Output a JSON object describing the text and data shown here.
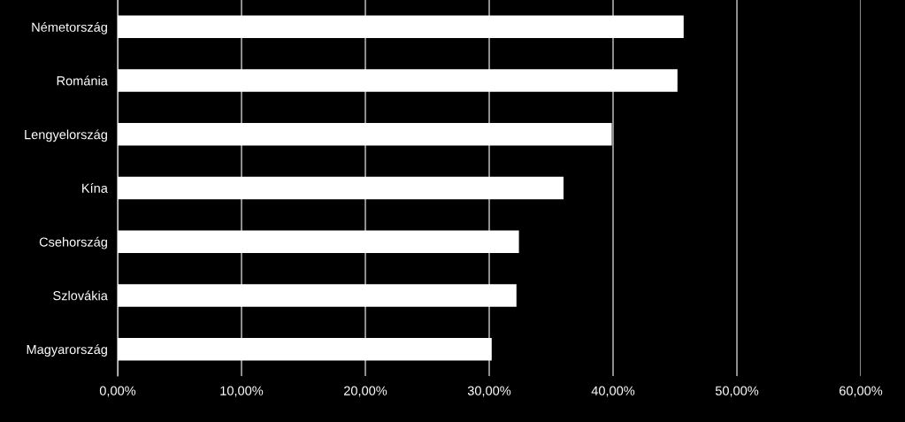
{
  "chart_data": {
    "type": "bar",
    "orientation": "horizontal",
    "categories": [
      "Németország",
      "Románia",
      "Lengyelország",
      "Kína",
      "Csehország",
      "Szlovákia",
      "Magyarország"
    ],
    "values": [
      45.7,
      45.2,
      39.9,
      36.0,
      32.4,
      32.2,
      30.2
    ],
    "color": "#ffffff",
    "xlim": [
      0,
      60
    ],
    "xticks": [
      {
        "value": 0,
        "label": "0,00%"
      },
      {
        "value": 10,
        "label": "10,00%"
      },
      {
        "value": 20,
        "label": "20,00%"
      },
      {
        "value": 30,
        "label": "30,00%"
      },
      {
        "value": 40,
        "label": "40,00%"
      },
      {
        "value": 50,
        "label": "50,00%"
      },
      {
        "value": 60,
        "label": "60,00%"
      }
    ],
    "grid": "x"
  }
}
